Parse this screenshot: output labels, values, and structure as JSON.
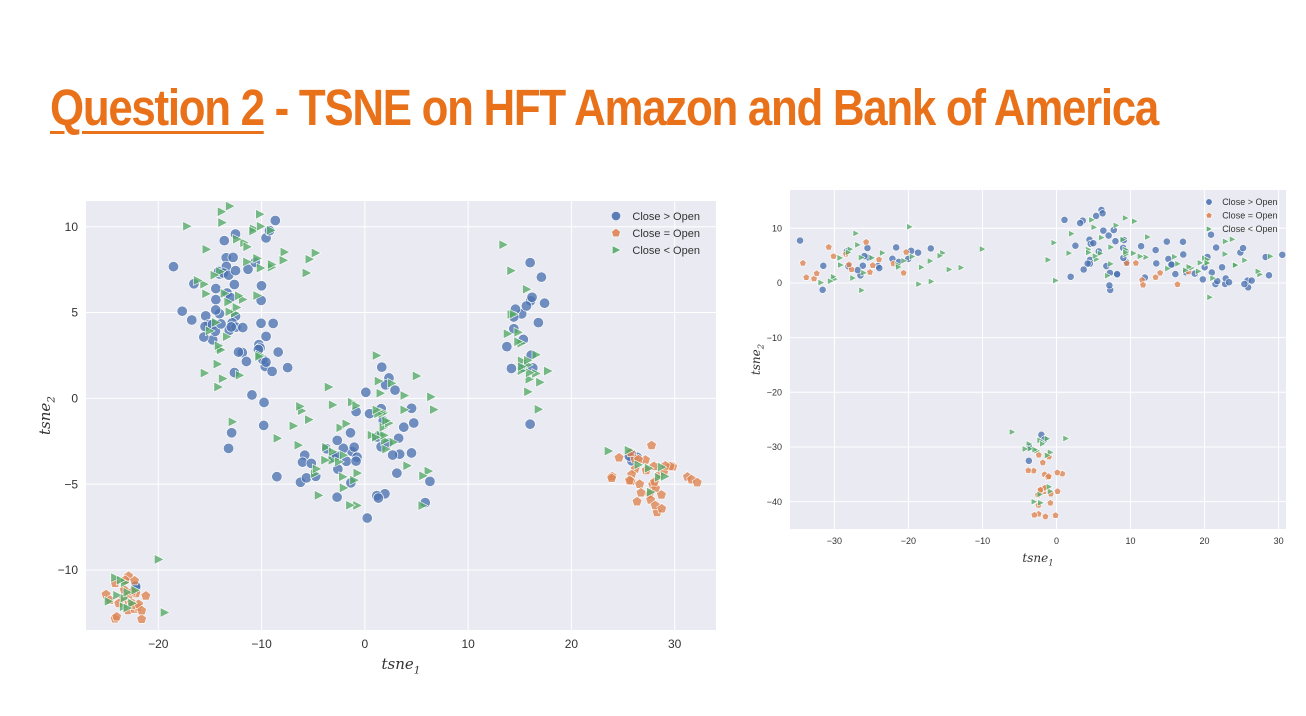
{
  "slide": {
    "title_first": "Question 2",
    "title_rest": " - TSNE on HFT Amazon and Bank of America",
    "accent_color": "#e8711a"
  },
  "chart_data": [
    {
      "type": "scatter",
      "name": "",
      "title": "",
      "xlabel": "tsne",
      "xlabel_sub": "1",
      "ylabel": "tsne",
      "ylabel_sub": "2",
      "xlim": [
        -27,
        34
      ],
      "ylim": [
        -13.5,
        11.5
      ],
      "xticks": [
        -20,
        -10,
        0,
        10,
        20,
        30
      ],
      "yticks": [
        -10,
        -5,
        0,
        5,
        10
      ],
      "grid": true,
      "legend_position": "top-right",
      "series": [
        {
          "name": "Close > Open",
          "marker": "circle",
          "color": "#4c72b0",
          "clusters": [
            {
              "cx": -13,
              "cy": 6,
              "sx": 2.2,
              "sy": 2.8,
              "n": 50
            },
            {
              "cx": -10,
              "cy": 2.5,
              "sx": 1.5,
              "sy": 1.3,
              "n": 12
            },
            {
              "cx": -2,
              "cy": -3.5,
              "sx": 3.2,
              "sy": 1.6,
              "n": 34
            },
            {
              "cx": 2,
              "cy": -0.5,
              "sx": 1.8,
              "sy": 1.5,
              "n": 14
            },
            {
              "cx": 15.5,
              "cy": 4,
              "sx": 1.1,
              "sy": 1.8,
              "n": 18
            },
            {
              "cx": 26,
              "cy": -3.5,
              "sx": 1.2,
              "sy": 0.4,
              "n": 5
            },
            {
              "cx": -23,
              "cy": -11.5,
              "sx": 0.8,
              "sy": 0.6,
              "n": 3
            }
          ]
        },
        {
          "name": "Close = Open",
          "marker": "pentagon",
          "color": "#dd8452",
          "clusters": [
            {
              "cx": -23,
              "cy": -11.7,
              "sx": 1,
              "sy": 0.6,
              "n": 24
            },
            {
              "cx": 28,
              "cy": -4.6,
              "sx": 2,
              "sy": 0.8,
              "n": 34
            }
          ]
        },
        {
          "name": "Close < Open",
          "marker": "triangle",
          "color": "#55a868",
          "clusters": [
            {
              "cx": -13,
              "cy": 5.5,
              "sx": 2.3,
              "sy": 3,
              "n": 40
            },
            {
              "cx": -8,
              "cy": 8,
              "sx": 2,
              "sy": 0.6,
              "n": 10
            },
            {
              "cx": -1,
              "cy": -3,
              "sx": 3.5,
              "sy": 2,
              "n": 40
            },
            {
              "cx": 3,
              "cy": 0,
              "sx": 1.6,
              "sy": 1.5,
              "n": 14
            },
            {
              "cx": 15.5,
              "cy": 3.5,
              "sx": 1.1,
              "sy": 2,
              "n": 22
            },
            {
              "cx": 27,
              "cy": -4,
              "sx": 2,
              "sy": 0.6,
              "n": 8
            },
            {
              "cx": -23,
              "cy": -11.4,
              "sx": 1.2,
              "sy": 0.6,
              "n": 12
            },
            {
              "cx": -20,
              "cy": -9.3,
              "sx": 0.05,
              "sy": 0.05,
              "n": 1
            }
          ]
        }
      ]
    },
    {
      "type": "scatter",
      "name": "",
      "title": "",
      "xlabel": "tsne",
      "xlabel_sub": "1",
      "ylabel": "tsne",
      "ylabel_sub": "2",
      "xlim": [
        -36,
        31
      ],
      "ylim": [
        -45,
        17
      ],
      "xticks": [
        -30,
        -20,
        -10,
        0,
        10,
        20,
        30
      ],
      "yticks": [
        10,
        0,
        -10,
        -20,
        -30,
        -40
      ],
      "grid": true,
      "legend_position": "top-right",
      "series": [
        {
          "name": "Close > Open",
          "marker": "circle",
          "color": "#4c72b0",
          "clusters": [
            {
              "cx": -28,
              "cy": 2,
              "sx": 3,
              "sy": 2,
              "n": 10
            },
            {
              "cx": -22,
              "cy": 5,
              "sx": 3,
              "sy": 1.5,
              "n": 10
            },
            {
              "cx": 5,
              "cy": 7,
              "sx": 3,
              "sy": 4,
              "n": 20
            },
            {
              "cx": 12,
              "cy": 3,
              "sx": 4,
              "sy": 2.5,
              "n": 20
            },
            {
              "cx": 23,
              "cy": 3,
              "sx": 4,
              "sy": 2.5,
              "n": 25
            },
            {
              "cx": -3,
              "cy": -31,
              "sx": 1,
              "sy": 2,
              "n": 4
            }
          ]
        },
        {
          "name": "Close = Open",
          "marker": "pentagon",
          "color": "#dd8452",
          "clusters": [
            {
              "cx": -29,
              "cy": 3,
              "sx": 2.5,
              "sy": 2,
              "n": 10
            },
            {
              "cx": -23,
              "cy": 4,
              "sx": 2,
              "sy": 1.5,
              "n": 6
            },
            {
              "cx": 16,
              "cy": 2,
              "sx": 4,
              "sy": 1.5,
              "n": 8
            },
            {
              "cx": -1.5,
              "cy": -37,
              "sx": 1,
              "sy": 3.5,
              "n": 25
            }
          ]
        },
        {
          "name": "Close < Open",
          "marker": "triangle",
          "color": "#55a868",
          "clusters": [
            {
              "cx": -22,
              "cy": 4.5,
              "sx": 5,
              "sy": 2.5,
              "n": 25
            },
            {
              "cx": -31,
              "cy": 0,
              "sx": 1.5,
              "sy": 1,
              "n": 5
            },
            {
              "cx": 6,
              "cy": 7,
              "sx": 4,
              "sy": 3.5,
              "n": 25
            },
            {
              "cx": 20,
              "cy": 3,
              "sx": 5,
              "sy": 2.5,
              "n": 25
            },
            {
              "cx": -2,
              "cy": -30,
              "sx": 2,
              "sy": 1.5,
              "n": 12
            },
            {
              "cx": -2,
              "cy": -38,
              "sx": 1,
              "sy": 2,
              "n": 5
            }
          ]
        }
      ]
    }
  ]
}
